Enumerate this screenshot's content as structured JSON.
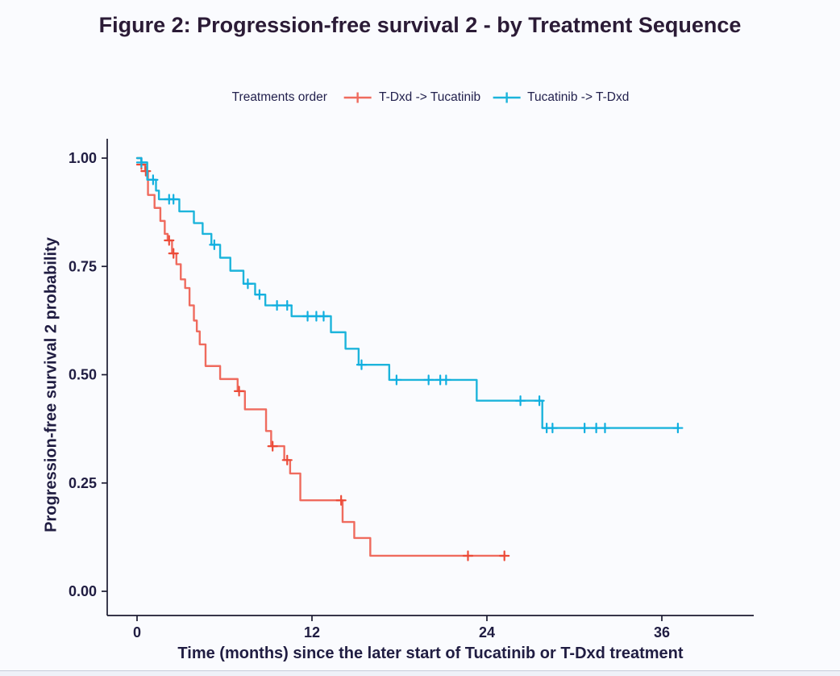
{
  "figure": {
    "title": "Figure 2: Progression-free survival 2 - by Treatment Sequence"
  },
  "chart_data": {
    "type": "line",
    "subtype": "kaplan-meier-step-survival",
    "title": "Figure 2: Progression-free survival 2 - by Treatment Sequence",
    "xlabel": "Time (months) since the later start of Tucatinib or T-Dxd treatment",
    "ylabel": "Progression-free survival 2 probability",
    "legend_title": "Treatments order",
    "legend_position": "top",
    "grid": false,
    "xlim": [
      0,
      42
    ],
    "ylim": [
      0,
      1
    ],
    "xticks": {
      "values": [
        0,
        12,
        24,
        36
      ],
      "labels": [
        "0",
        "12",
        "24",
        "36"
      ]
    },
    "yticks": {
      "values": [
        1.0,
        0.75,
        0.5,
        0.25,
        0.0
      ],
      "labels": [
        "1.00",
        "0.75",
        "0.50",
        "0.25",
        "0.00"
      ]
    },
    "axis_color": "#1b1a30",
    "tick_label_color": "#201d42",
    "series": [
      {
        "name": "T-Dxd -> Tucatinib",
        "color": "#EF6B5E",
        "censor_color": "#EC4B38",
        "end_time": 25.3,
        "steps": [
          [
            0,
            1.0
          ],
          [
            0.3,
            0.985
          ],
          [
            0.55,
            0.97
          ],
          [
            0.75,
            0.915
          ],
          [
            1.2,
            0.885
          ],
          [
            1.6,
            0.855
          ],
          [
            1.9,
            0.825
          ],
          [
            2.1,
            0.81
          ],
          [
            2.4,
            0.78
          ],
          [
            2.7,
            0.755
          ],
          [
            3.0,
            0.72
          ],
          [
            3.3,
            0.7
          ],
          [
            3.6,
            0.66
          ],
          [
            3.9,
            0.625
          ],
          [
            4.1,
            0.6
          ],
          [
            4.3,
            0.57
          ],
          [
            4.7,
            0.52
          ],
          [
            5.7,
            0.49
          ],
          [
            6.9,
            0.462
          ],
          [
            7.4,
            0.42
          ],
          [
            8.85,
            0.37
          ],
          [
            9.2,
            0.335
          ],
          [
            10.1,
            0.303
          ],
          [
            10.5,
            0.272
          ],
          [
            11.2,
            0.21
          ],
          [
            14.1,
            0.16
          ],
          [
            14.9,
            0.123
          ],
          [
            16.0,
            0.082
          ]
        ],
        "censors": [
          [
            0.3,
            0.985
          ],
          [
            0.6,
            0.97
          ],
          [
            2.2,
            0.81
          ],
          [
            2.5,
            0.78
          ],
          [
            7.0,
            0.462
          ],
          [
            9.3,
            0.335
          ],
          [
            10.3,
            0.303
          ],
          [
            14.0,
            0.21
          ],
          [
            22.7,
            0.082
          ],
          [
            25.2,
            0.082
          ]
        ]
      },
      {
        "name": "Tucatinib -> T-Dxd",
        "color": "#1CB4DB",
        "censor_color": "#10AFE0",
        "end_time": 37.2,
        "steps": [
          [
            0,
            1.0
          ],
          [
            0.3,
            0.99
          ],
          [
            0.7,
            0.95
          ],
          [
            1.3,
            0.925
          ],
          [
            1.5,
            0.905
          ],
          [
            2.9,
            0.877
          ],
          [
            3.9,
            0.85
          ],
          [
            4.5,
            0.825
          ],
          [
            5.1,
            0.8
          ],
          [
            5.7,
            0.77
          ],
          [
            6.4,
            0.74
          ],
          [
            7.3,
            0.71
          ],
          [
            8.1,
            0.685
          ],
          [
            8.8,
            0.66
          ],
          [
            10.6,
            0.635
          ],
          [
            13.3,
            0.598
          ],
          [
            14.3,
            0.56
          ],
          [
            15.2,
            0.523
          ],
          [
            17.3,
            0.488
          ],
          [
            23.3,
            0.44
          ],
          [
            27.8,
            0.377
          ]
        ],
        "censors": [
          [
            0.3,
            0.99
          ],
          [
            1.1,
            0.95
          ],
          [
            2.2,
            0.905
          ],
          [
            2.5,
            0.905
          ],
          [
            5.3,
            0.8
          ],
          [
            7.6,
            0.71
          ],
          [
            8.4,
            0.685
          ],
          [
            9.6,
            0.66
          ],
          [
            10.3,
            0.66
          ],
          [
            11.7,
            0.635
          ],
          [
            12.3,
            0.635
          ],
          [
            12.8,
            0.635
          ],
          [
            15.4,
            0.523
          ],
          [
            17.8,
            0.488
          ],
          [
            20.0,
            0.488
          ],
          [
            20.8,
            0.488
          ],
          [
            21.2,
            0.488
          ],
          [
            26.3,
            0.44
          ],
          [
            27.6,
            0.44
          ],
          [
            28.1,
            0.377
          ],
          [
            28.5,
            0.377
          ],
          [
            30.7,
            0.377
          ],
          [
            31.5,
            0.377
          ],
          [
            32.1,
            0.377
          ],
          [
            37.1,
            0.377
          ]
        ]
      }
    ]
  }
}
